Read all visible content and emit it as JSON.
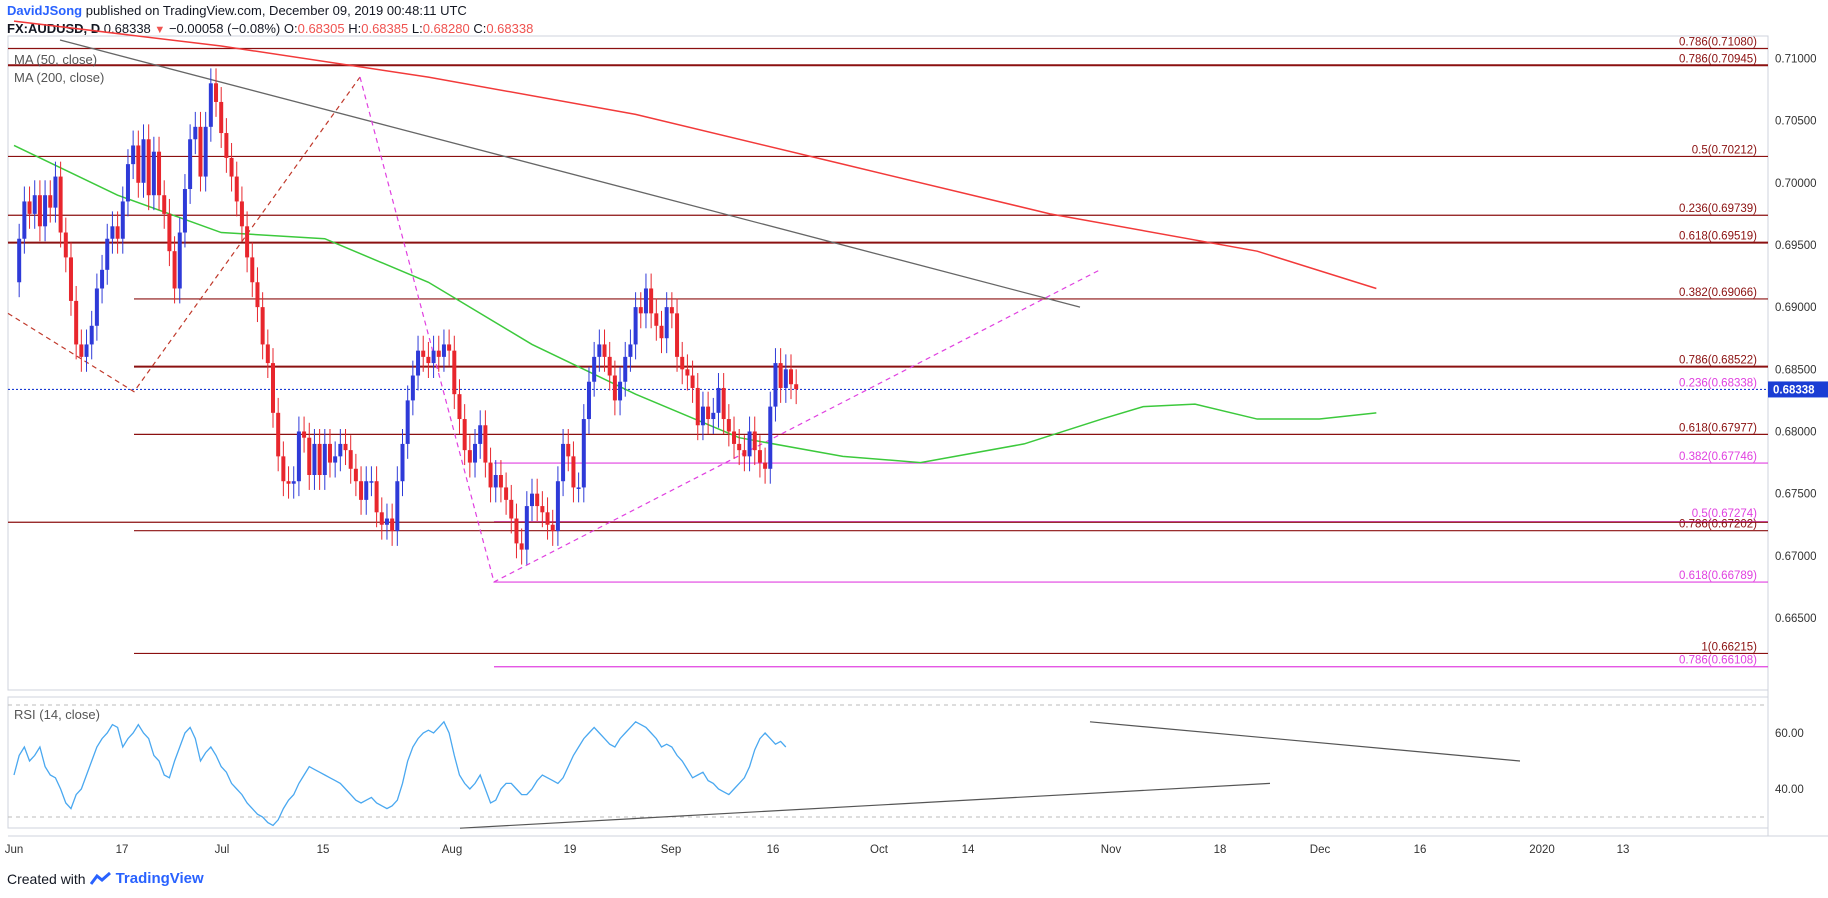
{
  "header": {
    "author": "DavidJSong",
    "published": " published on TradingView.com, December 09, 2019 00:48:11 UTC",
    "symbol": "FX:AUDUSD, D",
    "last": "0.68338",
    "change": "−0.00058 (−0.08%)",
    "o_label": "O:",
    "o": "0.68305",
    "h_label": "H:",
    "h": "0.68385",
    "l_label": "L:",
    "l": "0.68280",
    "c_label": "C:",
    "c": "0.68338"
  },
  "indicators": {
    "ma50": "MA (50, close)",
    "ma200": "MA (200, close)",
    "rsi": "RSI (14, close)"
  },
  "footer": {
    "created_with": "Created with",
    "brand": "TradingView"
  },
  "colors": {
    "up": "#2e3ad8",
    "down": "#e8262d",
    "ma50": "#3cc93c",
    "ma200": "#f23a3a",
    "fib_dark": "#8b1010",
    "fib_magenta": "#e040e0",
    "rsi": "#4aa8f0",
    "price_tag": "#1a3dd4",
    "trendline": "#555555"
  },
  "chart_data": [
    {
      "type": "candlestick",
      "instrument": "FX:AUDUSD, D",
      "ylim": [
        0.6605,
        0.712
      ],
      "y_ticks": [
        "0.71000",
        "0.70500",
        "0.70000",
        "0.69500",
        "0.69000",
        "0.68500",
        "0.68000",
        "0.67500",
        "0.67000",
        "0.66500"
      ],
      "x_ticks": [
        "Jun",
        "17",
        "Jul",
        "15",
        "Aug",
        "19",
        "Sep",
        "16",
        "Oct",
        "14",
        "Nov",
        "18",
        "Dec",
        "16",
        "2020",
        "13"
      ],
      "last_price_label": "0.68338",
      "last_price": 0.68338,
      "candles_close": [
        0.692,
        0.6955,
        0.6985,
        0.6975,
        0.699,
        0.6965,
        0.699,
        0.698,
        0.7005,
        0.696,
        0.694,
        0.6905,
        0.687,
        0.686,
        0.687,
        0.6885,
        0.6915,
        0.693,
        0.6955,
        0.6965,
        0.6955,
        0.6985,
        0.7015,
        0.703,
        0.7,
        0.7035,
        0.699,
        0.7025,
        0.699,
        0.6975,
        0.6945,
        0.6915,
        0.696,
        0.6995,
        0.7035,
        0.7045,
        0.7005,
        0.7045,
        0.708,
        0.7065,
        0.704,
        0.702,
        0.7005,
        0.6985,
        0.6965,
        0.694,
        0.692,
        0.69,
        0.687,
        0.6855,
        0.6815,
        0.678,
        0.676,
        0.6758,
        0.676,
        0.68,
        0.6795,
        0.6765,
        0.679,
        0.6765,
        0.679,
        0.6775,
        0.678,
        0.679,
        0.6785,
        0.677,
        0.676,
        0.6745,
        0.676,
        0.676,
        0.6735,
        0.6725,
        0.673,
        0.672,
        0.676,
        0.679,
        0.6825,
        0.6845,
        0.6865,
        0.686,
        0.6855,
        0.6865,
        0.686,
        0.687,
        0.6865,
        0.683,
        0.681,
        0.6785,
        0.6775,
        0.679,
        0.6805,
        0.6775,
        0.6755,
        0.6765,
        0.6755,
        0.6745,
        0.673,
        0.671,
        0.6705,
        0.674,
        0.675,
        0.674,
        0.6735,
        0.6725,
        0.672,
        0.676,
        0.679,
        0.678,
        0.6755,
        0.6755,
        0.681,
        0.684,
        0.686,
        0.687,
        0.686,
        0.6845,
        0.6825,
        0.684,
        0.686,
        0.687,
        0.69,
        0.6895,
        0.6915,
        0.6895,
        0.6885,
        0.6875,
        0.69,
        0.6895,
        0.686,
        0.685,
        0.6845,
        0.6835,
        0.6805,
        0.682,
        0.681,
        0.6815,
        0.6835,
        0.681,
        0.68,
        0.679,
        0.6785,
        0.678,
        0.68,
        0.6785,
        0.6775,
        0.677,
        0.682,
        0.6855,
        0.6835,
        0.685,
        0.6838,
        0.6834
      ],
      "ma50": [
        [
          0,
          0.703
        ],
        [
          20,
          0.699
        ],
        [
          40,
          0.696
        ],
        [
          60,
          0.6955
        ],
        [
          80,
          0.692
        ],
        [
          100,
          0.687
        ],
        [
          120,
          0.683
        ],
        [
          140,
          0.6795
        ],
        [
          160,
          0.678
        ],
        [
          175,
          0.6775
        ],
        [
          195,
          0.679
        ],
        [
          210,
          0.681
        ],
        [
          218,
          0.682
        ],
        [
          228,
          0.6822
        ],
        [
          240,
          0.681
        ],
        [
          252,
          0.681
        ],
        [
          263,
          0.6815
        ]
      ],
      "ma200": [
        [
          0,
          0.713
        ],
        [
          40,
          0.711
        ],
        [
          80,
          0.7085
        ],
        [
          120,
          0.7055
        ],
        [
          160,
          0.7015
        ],
        [
          200,
          0.6975
        ],
        [
          240,
          0.6945
        ],
        [
          263,
          0.6915
        ]
      ],
      "fib_levels_dark": [
        {
          "label": "0.786(0.71080)",
          "value": 0.7108
        },
        {
          "label": "0.786(0.70945)",
          "value": 0.70945
        },
        {
          "label": "0.5(0.70212)",
          "value": 0.70212
        },
        {
          "label": "0.236(0.69739)",
          "value": 0.69739
        },
        {
          "label": "0.618(0.69519)",
          "value": 0.69519
        },
        {
          "label": "0.382(0.69066)",
          "value": 0.69066
        },
        {
          "label": "0.786(0.68522)",
          "value": 0.68522
        },
        {
          "label": "0.618(0.67977)",
          "value": 0.67977
        },
        {
          "label": "0.786(0.67202)",
          "value": 0.67202
        },
        {
          "label": "1(0.66215)",
          "value": 0.66215
        }
      ],
      "fib_levels_magenta": [
        {
          "label": "0.236(0.68338)",
          "value": 0.68338
        },
        {
          "label": "0.382(0.67746)",
          "value": 0.67746
        },
        {
          "label": "0.5(0.67274)",
          "value": 0.67274
        },
        {
          "label": "0.618(0.66789)",
          "value": 0.66789
        },
        {
          "label": "0.786(0.66108)",
          "value": 0.66108
        }
      ]
    },
    {
      "type": "line",
      "name": "RSI (14, close)",
      "ylim": [
        28,
        72
      ],
      "y_ticks": [
        "60.00",
        "40.00"
      ],
      "values": [
        45,
        52,
        55,
        50,
        52,
        55,
        48,
        45,
        44,
        40,
        35,
        33,
        38,
        40,
        45,
        50,
        55,
        58,
        60,
        63,
        62,
        55,
        58,
        60,
        63,
        60,
        58,
        52,
        50,
        45,
        44,
        50,
        55,
        60,
        62,
        58,
        50,
        53,
        55,
        52,
        48,
        46,
        42,
        40,
        38,
        35,
        33,
        31,
        30,
        28,
        27,
        29,
        33,
        36,
        38,
        42,
        45,
        48,
        47,
        46,
        45,
        44,
        43,
        42,
        40,
        38,
        36,
        35,
        36,
        37,
        35,
        34,
        33,
        34,
        36,
        42,
        50,
        55,
        58,
        60,
        61,
        60,
        62,
        64,
        60,
        52,
        45,
        42,
        40,
        42,
        45,
        40,
        35,
        36,
        40,
        42,
        42,
        40,
        38,
        38,
        40,
        43,
        45,
        44,
        43,
        42,
        44,
        48,
        52,
        55,
        58,
        60,
        62,
        60,
        58,
        56,
        55,
        58,
        60,
        62,
        64,
        63,
        62,
        60,
        58,
        55,
        56,
        55,
        52,
        50,
        47,
        44,
        45,
        46,
        43,
        42,
        40,
        39,
        38,
        40,
        42,
        44,
        48,
        54,
        58,
        60,
        58,
        56,
        57,
        55
      ]
    }
  ]
}
